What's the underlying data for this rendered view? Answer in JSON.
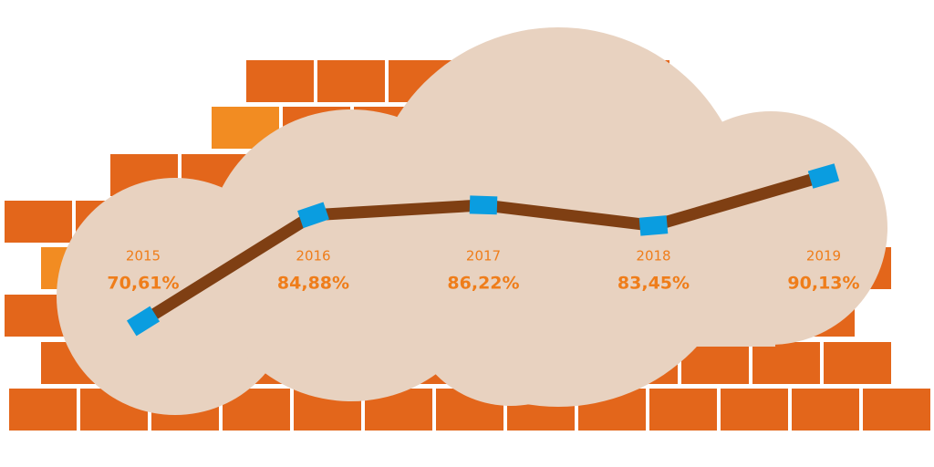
{
  "chart_data": {
    "type": "line",
    "categories": [
      "2015",
      "2016",
      "2017",
      "2018",
      "2019"
    ],
    "values": [
      70.61,
      84.88,
      86.22,
      83.45,
      90.13
    ],
    "value_labels": [
      "70,61%",
      "84,88%",
      "86,22%",
      "83,45%",
      "90,13%"
    ],
    "color": "#7f3f13",
    "marker_color": "#0a9de0",
    "label_color": "#ef7d1a"
  }
}
